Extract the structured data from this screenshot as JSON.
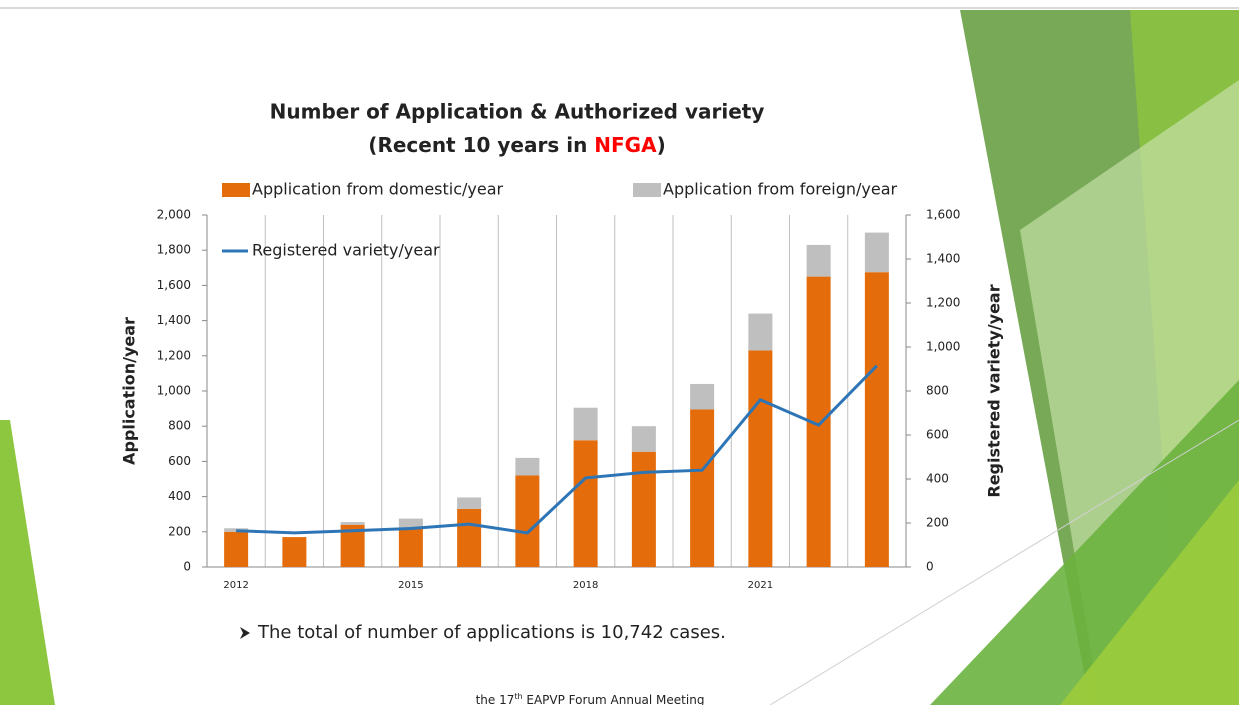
{
  "chart_data": {
    "type": "bar",
    "title": "Number of Application & Authorized variety",
    "subtitle_parts": [
      "(Recent 10 years in ",
      "NFGA",
      ")"
    ],
    "categories": [
      "2012",
      null,
      null,
      "2015",
      null,
      null,
      "2018",
      null,
      null,
      "2021",
      null,
      null
    ],
    "series": [
      {
        "name": "Application from domestic/year",
        "color": "#e46c0a",
        "stack": true,
        "values": [
          200,
          170,
          240,
          220,
          330,
          520,
          720,
          655,
          895,
          1230,
          1650,
          1675
        ]
      },
      {
        "name": "Application from foreign/year",
        "color": "#bfbfbf",
        "stack": true,
        "values": [
          20,
          0,
          15,
          55,
          65,
          100,
          185,
          145,
          145,
          210,
          180,
          225
        ]
      },
      {
        "name": "Registered variety/year",
        "color": "#2e75b6",
        "type": "line",
        "axis": "y2",
        "values": [
          165,
          155,
          165,
          175,
          195,
          155,
          405,
          430,
          440,
          760,
          645,
          915
        ]
      }
    ],
    "ylabel": "Application/year",
    "y2label": "Registered variety/year",
    "ylim": [
      0,
      2000
    ],
    "yticks": [
      0,
      200,
      400,
      600,
      800,
      {
        "value": 1000,
        "label": "1,000"
      },
      {
        "value": 1200,
        "label": "1,200"
      },
      {
        "value": 1400,
        "label": "1,400"
      },
      {
        "value": 1600,
        "label": "1,600"
      },
      {
        "value": 1800,
        "label": "1,800"
      },
      {
        "value": 2000,
        "label": "2,000"
      }
    ],
    "y2lim": [
      0,
      1600
    ],
    "y2ticks": [
      0,
      200,
      400,
      600,
      800,
      {
        "value": 1000,
        "label": "1,000"
      },
      {
        "value": 1200,
        "label": "1,200"
      },
      {
        "value": 1400,
        "label": "1,400"
      },
      {
        "value": 1600,
        "label": "1,600"
      }
    ],
    "note": "The total of number of applications is 10,742 cases.",
    "footer_parts": [
      "the 17",
      "th",
      " EAPVP Forum Annual Meeting"
    ]
  }
}
